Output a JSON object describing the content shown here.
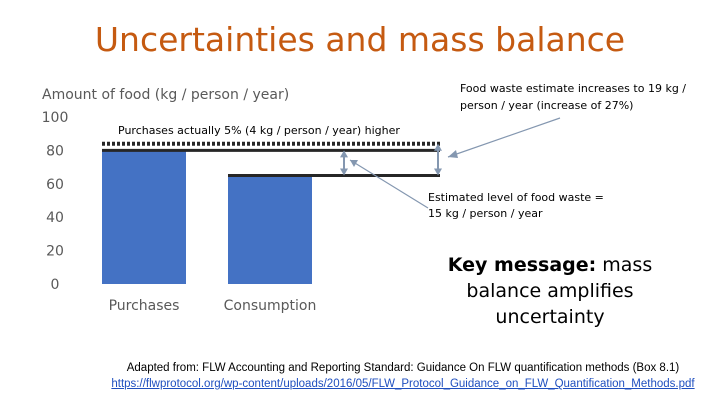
{
  "title": "Uncertainties and mass balance",
  "chart_data": {
    "type": "bar",
    "ylabel": "Amount of food (kg / person / year)",
    "categories": [
      "Purchases",
      "Consumption"
    ],
    "values": [
      80,
      65
    ],
    "yticks": [
      0,
      20,
      40,
      60,
      80,
      100
    ],
    "ylim": [
      0,
      100
    ],
    "bar_color": "#4472c4",
    "reference_lines": [
      {
        "value": 84,
        "style": "dotted"
      },
      {
        "value": 80,
        "style": "solid"
      },
      {
        "value": 65,
        "style": "solid"
      }
    ],
    "annotations": {
      "food_waste_estimate": "Food waste estimate increases to 19 kg / person / year (increase of 27%)",
      "purchases_higher": "Purchases actually 5% (4 kg / person / year) higher",
      "estimated_level": "Estimated level of food waste = 15 kg / person / year"
    }
  },
  "key_message": {
    "label": "Key message:",
    "text": " mass balance amplifies uncertainty"
  },
  "credit": {
    "line1": "Adapted from: FLW Accounting and Reporting Standard: Guidance On FLW quantification methods (Box 8.1)",
    "link": "https://flwprotocol.org/wp-content/uploads/2016/05/FLW_Protocol_Guidance_on_FLW_Quantification_Methods.pdf"
  },
  "colors": {
    "title": "#c55a11",
    "bar": "#4472c4",
    "axis_text": "#595959",
    "line": "#262626"
  }
}
